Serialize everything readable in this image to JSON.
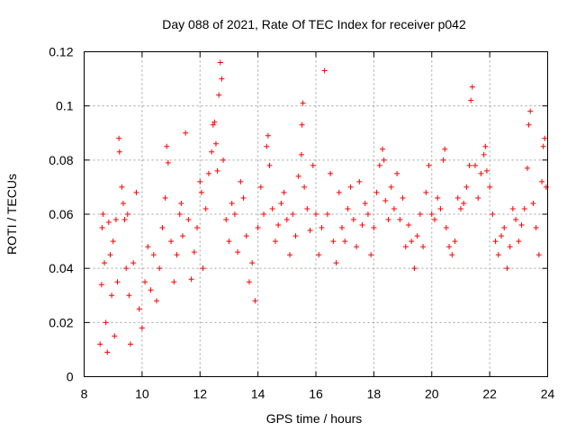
{
  "chart_data": {
    "type": "scatter",
    "title": "Day 088 of 2021, Rate Of TEC Index for receiver p042",
    "xlabel": "GPS time / hours",
    "ylabel": "ROTI / TECUs",
    "xlim": [
      8,
      24
    ],
    "ylim": [
      0,
      0.12
    ],
    "x_ticks": [
      8,
      10,
      12,
      14,
      16,
      18,
      20,
      22,
      24
    ],
    "x_tick_labels": [
      "8",
      "10",
      "12",
      "14",
      "16",
      "18",
      "20",
      "22",
      "24"
    ],
    "y_ticks": [
      0,
      0.02,
      0.04,
      0.06,
      0.08,
      0.1,
      0.12
    ],
    "y_tick_labels": [
      "0",
      "0.02",
      "0.04",
      "0.06",
      "0.08",
      "0.1",
      "0.12"
    ],
    "grid": true,
    "marker": "+",
    "color": "#ff0000",
    "series": [
      {
        "name": "ROTI",
        "points": [
          [
            8.55,
            0.012
          ],
          [
            8.6,
            0.034
          ],
          [
            8.62,
            0.055
          ],
          [
            8.65,
            0.06
          ],
          [
            8.7,
            0.042
          ],
          [
            8.75,
            0.02
          ],
          [
            8.8,
            0.009
          ],
          [
            8.85,
            0.057
          ],
          [
            8.9,
            0.045
          ],
          [
            8.95,
            0.03
          ],
          [
            9.0,
            0.05
          ],
          [
            9.05,
            0.015
          ],
          [
            9.1,
            0.058
          ],
          [
            9.15,
            0.035
          ],
          [
            9.2,
            0.088
          ],
          [
            9.22,
            0.083
          ],
          [
            9.3,
            0.07
          ],
          [
            9.35,
            0.064
          ],
          [
            9.4,
            0.058
          ],
          [
            9.45,
            0.04
          ],
          [
            9.5,
            0.06
          ],
          [
            9.55,
            0.03
          ],
          [
            9.6,
            0.012
          ],
          [
            9.7,
            0.042
          ],
          [
            9.8,
            0.068
          ],
          [
            9.9,
            0.025
          ],
          [
            10.0,
            0.018
          ],
          [
            10.1,
            0.035
          ],
          [
            10.2,
            0.048
          ],
          [
            10.3,
            0.032
          ],
          [
            10.4,
            0.045
          ],
          [
            10.5,
            0.028
          ],
          [
            10.6,
            0.04
          ],
          [
            10.7,
            0.055
          ],
          [
            10.8,
            0.066
          ],
          [
            10.85,
            0.085
          ],
          [
            10.9,
            0.079
          ],
          [
            11.0,
            0.05
          ],
          [
            11.1,
            0.035
          ],
          [
            11.2,
            0.045
          ],
          [
            11.3,
            0.06
          ],
          [
            11.35,
            0.064
          ],
          [
            11.4,
            0.052
          ],
          [
            11.5,
            0.09
          ],
          [
            11.6,
            0.058
          ],
          [
            11.7,
            0.036
          ],
          [
            11.8,
            0.046
          ],
          [
            11.9,
            0.055
          ],
          [
            12.0,
            0.072
          ],
          [
            12.05,
            0.068
          ],
          [
            12.1,
            0.04
          ],
          [
            12.2,
            0.062
          ],
          [
            12.3,
            0.075
          ],
          [
            12.4,
            0.083
          ],
          [
            12.45,
            0.093
          ],
          [
            12.5,
            0.094
          ],
          [
            12.55,
            0.086
          ],
          [
            12.6,
            0.076
          ],
          [
            12.65,
            0.104
          ],
          [
            12.7,
            0.116
          ],
          [
            12.75,
            0.11
          ],
          [
            12.8,
            0.08
          ],
          [
            12.9,
            0.058
          ],
          [
            13.0,
            0.05
          ],
          [
            13.1,
            0.064
          ],
          [
            13.2,
            0.06
          ],
          [
            13.3,
            0.046
          ],
          [
            13.4,
            0.072
          ],
          [
            13.5,
            0.066
          ],
          [
            13.6,
            0.052
          ],
          [
            13.7,
            0.035
          ],
          [
            13.8,
            0.042
          ],
          [
            13.9,
            0.028
          ],
          [
            14.0,
            0.055
          ],
          [
            14.1,
            0.07
          ],
          [
            14.2,
            0.06
          ],
          [
            14.3,
            0.085
          ],
          [
            14.35,
            0.089
          ],
          [
            14.4,
            0.078
          ],
          [
            14.5,
            0.062
          ],
          [
            14.6,
            0.05
          ],
          [
            14.7,
            0.056
          ],
          [
            14.8,
            0.064
          ],
          [
            14.9,
            0.068
          ],
          [
            15.0,
            0.058
          ],
          [
            15.1,
            0.045
          ],
          [
            15.2,
            0.06
          ],
          [
            15.3,
            0.052
          ],
          [
            15.4,
            0.074
          ],
          [
            15.5,
            0.082
          ],
          [
            15.52,
            0.093
          ],
          [
            15.55,
            0.101
          ],
          [
            15.6,
            0.07
          ],
          [
            15.7,
            0.062
          ],
          [
            15.8,
            0.054
          ],
          [
            15.9,
            0.078
          ],
          [
            16.0,
            0.06
          ],
          [
            16.1,
            0.045
          ],
          [
            16.2,
            0.055
          ],
          [
            16.3,
            0.113
          ],
          [
            16.4,
            0.06
          ],
          [
            16.5,
            0.075
          ],
          [
            16.6,
            0.05
          ],
          [
            16.7,
            0.042
          ],
          [
            16.8,
            0.068
          ],
          [
            16.9,
            0.055
          ],
          [
            17.0,
            0.05
          ],
          [
            17.1,
            0.062
          ],
          [
            17.2,
            0.07
          ],
          [
            17.3,
            0.058
          ],
          [
            17.4,
            0.048
          ],
          [
            17.5,
            0.072
          ],
          [
            17.6,
            0.056
          ],
          [
            17.7,
            0.064
          ],
          [
            17.8,
            0.06
          ],
          [
            17.9,
            0.045
          ],
          [
            18.0,
            0.055
          ],
          [
            18.1,
            0.068
          ],
          [
            18.2,
            0.078
          ],
          [
            18.3,
            0.084
          ],
          [
            18.35,
            0.08
          ],
          [
            18.4,
            0.065
          ],
          [
            18.5,
            0.058
          ],
          [
            18.6,
            0.07
          ],
          [
            18.7,
            0.062
          ],
          [
            18.8,
            0.075
          ],
          [
            18.9,
            0.058
          ],
          [
            19.0,
            0.066
          ],
          [
            19.1,
            0.048
          ],
          [
            19.2,
            0.056
          ],
          [
            19.3,
            0.05
          ],
          [
            19.4,
            0.04
          ],
          [
            19.5,
            0.052
          ],
          [
            19.6,
            0.06
          ],
          [
            19.7,
            0.048
          ],
          [
            19.8,
            0.068
          ],
          [
            19.9,
            0.078
          ],
          [
            20.0,
            0.06
          ],
          [
            20.1,
            0.058
          ],
          [
            20.2,
            0.066
          ],
          [
            20.3,
            0.062
          ],
          [
            20.4,
            0.08
          ],
          [
            20.45,
            0.084
          ],
          [
            20.5,
            0.055
          ],
          [
            20.6,
            0.048
          ],
          [
            20.7,
            0.045
          ],
          [
            20.8,
            0.05
          ],
          [
            20.9,
            0.066
          ],
          [
            21.0,
            0.062
          ],
          [
            21.1,
            0.064
          ],
          [
            21.2,
            0.07
          ],
          [
            21.3,
            0.078
          ],
          [
            21.35,
            0.102
          ],
          [
            21.4,
            0.107
          ],
          [
            21.5,
            0.078
          ],
          [
            21.6,
            0.066
          ],
          [
            21.7,
            0.075
          ],
          [
            21.8,
            0.082
          ],
          [
            21.85,
            0.085
          ],
          [
            21.9,
            0.076
          ],
          [
            22.0,
            0.07
          ],
          [
            22.1,
            0.06
          ],
          [
            22.2,
            0.05
          ],
          [
            22.3,
            0.045
          ],
          [
            22.4,
            0.052
          ],
          [
            22.5,
            0.055
          ],
          [
            22.6,
            0.04
          ],
          [
            22.7,
            0.048
          ],
          [
            22.8,
            0.062
          ],
          [
            22.9,
            0.058
          ],
          [
            23.0,
            0.05
          ],
          [
            23.1,
            0.056
          ],
          [
            23.2,
            0.062
          ],
          [
            23.3,
            0.077
          ],
          [
            23.35,
            0.093
          ],
          [
            23.4,
            0.098
          ],
          [
            23.5,
            0.064
          ],
          [
            23.6,
            0.055
          ],
          [
            23.7,
            0.045
          ],
          [
            23.8,
            0.072
          ],
          [
            23.85,
            0.085
          ],
          [
            23.9,
            0.088
          ],
          [
            23.95,
            0.07
          ]
        ]
      }
    ]
  }
}
